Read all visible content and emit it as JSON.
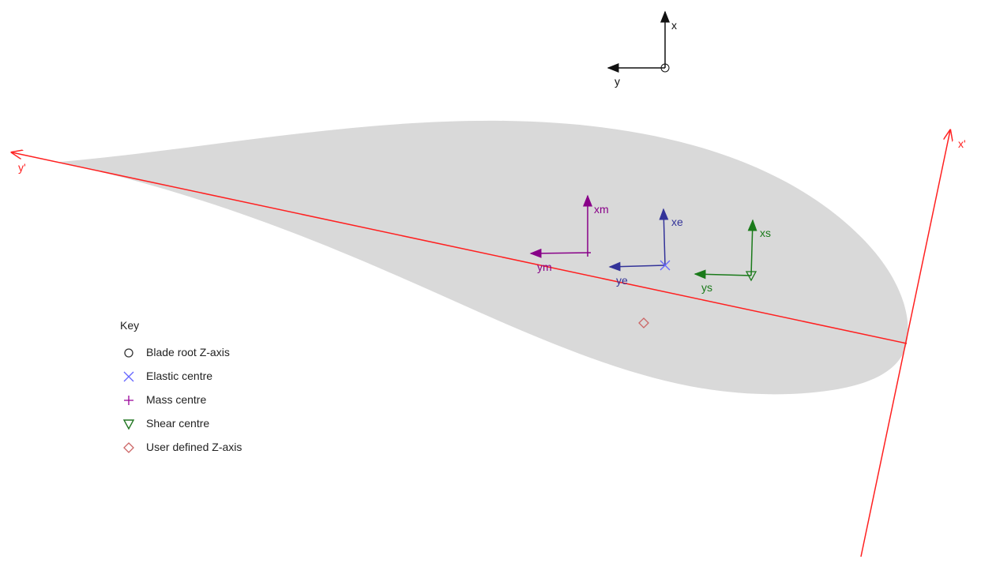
{
  "global_axes": {
    "x_label": "x",
    "y_label": "y"
  },
  "principal_axes": {
    "x_label": "x'",
    "y_label": "y'"
  },
  "mass_axes": {
    "x_label": "xm",
    "y_label": "ym"
  },
  "elastic_axes": {
    "x_label": "xe",
    "y_label": "ye"
  },
  "shear_axes": {
    "x_label": "xs",
    "y_label": "ys"
  },
  "key": {
    "title": "Key",
    "items": [
      {
        "label": "Blade root Z-axis",
        "symbol": "circle",
        "color": "#333333"
      },
      {
        "label": "Elastic centre",
        "symbol": "cross-x",
        "color": "#6666ff"
      },
      {
        "label": "Mass centre",
        "symbol": "plus",
        "color": "#990099"
      },
      {
        "label": "Shear centre",
        "symbol": "triangle-down",
        "color": "#227722"
      },
      {
        "label": "User defined Z-axis",
        "symbol": "diamond",
        "color": "#cc6666"
      }
    ]
  },
  "colors": {
    "airfoil": "#d9d9d9",
    "principal": "#ff2020",
    "mass": "#880088",
    "elastic": "#333399",
    "shear": "#1a7a1a",
    "global": "#111111"
  }
}
